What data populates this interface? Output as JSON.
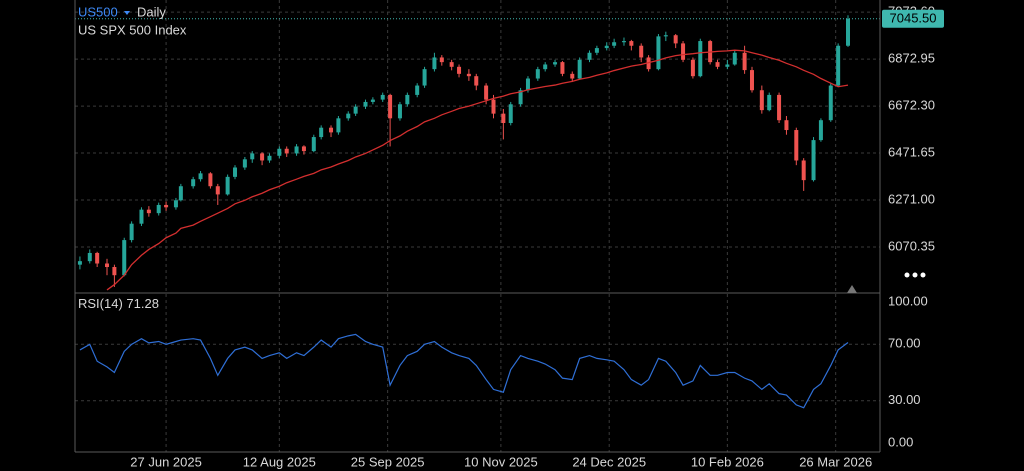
{
  "chart_data": {
    "type": "candlestick",
    "symbol": "US500",
    "interval": "Daily",
    "title": "US SPX 500 Index",
    "x": [
      "2025-05-23",
      "2025-05-27",
      "2025-05-30",
      "2025-06-03",
      "2025-06-06",
      "2025-06-10",
      "2025-06-13",
      "2025-06-17",
      "2025-06-20",
      "2025-06-24",
      "2025-06-27",
      "2025-07-01",
      "2025-07-03",
      "2025-07-08",
      "2025-07-11",
      "2025-07-15",
      "2025-07-18",
      "2025-07-22",
      "2025-07-25",
      "2025-07-29",
      "2025-08-01",
      "2025-08-05",
      "2025-08-08",
      "2025-08-12",
      "2025-08-15",
      "2025-08-19",
      "2025-08-22",
      "2025-08-26",
      "2025-08-29",
      "2025-09-02",
      "2025-09-05",
      "2025-09-09",
      "2025-09-12",
      "2025-09-16",
      "2025-09-19",
      "2025-09-23",
      "2025-09-26",
      "2025-09-30",
      "2025-10-03",
      "2025-10-07",
      "2025-10-10",
      "2025-10-14",
      "2025-10-17",
      "2025-10-21",
      "2025-10-24",
      "2025-10-28",
      "2025-10-31",
      "2025-11-04",
      "2025-11-07",
      "2025-11-11",
      "2025-11-14",
      "2025-11-18",
      "2025-11-21",
      "2025-11-25",
      "2025-11-28",
      "2025-12-02",
      "2025-12-05",
      "2025-12-09",
      "2025-12-12",
      "2025-12-16",
      "2025-12-19",
      "2025-12-23",
      "2025-12-26",
      "2025-12-30",
      "2026-01-02",
      "2026-01-06",
      "2026-01-09",
      "2026-01-13",
      "2026-01-16",
      "2026-01-20",
      "2026-01-23",
      "2026-01-27",
      "2026-01-30",
      "2026-02-03",
      "2026-02-06",
      "2026-02-10",
      "2026-02-13",
      "2026-02-17",
      "2026-02-20",
      "2026-02-24",
      "2026-02-27",
      "2026-03-03",
      "2026-03-06",
      "2026-03-10",
      "2026-03-13",
      "2026-03-17",
      "2026-03-20",
      "2026-03-24",
      "2026-03-27",
      "2026-03-31"
    ],
    "values": [
      [
        5995,
        6030,
        5975,
        6010
      ],
      [
        6010,
        6060,
        6000,
        6045
      ],
      [
        6045,
        6050,
        5985,
        6000
      ],
      [
        6000,
        6020,
        5950,
        5985
      ],
      [
        5985,
        5995,
        5900,
        5950
      ],
      [
        5950,
        6110,
        5945,
        6100
      ],
      [
        6100,
        6180,
        6090,
        6170
      ],
      [
        6170,
        6240,
        6160,
        6230
      ],
      [
        6230,
        6245,
        6200,
        6215
      ],
      [
        6215,
        6260,
        6205,
        6250
      ],
      [
        6250,
        6265,
        6225,
        6240
      ],
      [
        6240,
        6280,
        6230,
        6270
      ],
      [
        6270,
        6340,
        6265,
        6330
      ],
      [
        6330,
        6370,
        6320,
        6360
      ],
      [
        6360,
        6395,
        6350,
        6385
      ],
      [
        6385,
        6390,
        6320,
        6330
      ],
      [
        6330,
        6340,
        6250,
        6295
      ],
      [
        6295,
        6380,
        6290,
        6370
      ],
      [
        6370,
        6420,
        6360,
        6410
      ],
      [
        6410,
        6455,
        6400,
        6445
      ],
      [
        6445,
        6480,
        6430,
        6470
      ],
      [
        6470,
        6475,
        6420,
        6440
      ],
      [
        6440,
        6470,
        6430,
        6460
      ],
      [
        6460,
        6500,
        6450,
        6490
      ],
      [
        6490,
        6500,
        6455,
        6470
      ],
      [
        6470,
        6510,
        6460,
        6500
      ],
      [
        6500,
        6505,
        6465,
        6480
      ],
      [
        6480,
        6550,
        6475,
        6540
      ],
      [
        6540,
        6590,
        6530,
        6580
      ],
      [
        6580,
        6590,
        6540,
        6560
      ],
      [
        6560,
        6630,
        6550,
        6620
      ],
      [
        6620,
        6650,
        6610,
        6640
      ],
      [
        6640,
        6680,
        6630,
        6670
      ],
      [
        6670,
        6700,
        6660,
        6690
      ],
      [
        6690,
        6710,
        6680,
        6700
      ],
      [
        6700,
        6730,
        6690,
        6720
      ],
      [
        6720,
        6725,
        6500,
        6620
      ],
      [
        6620,
        6690,
        6610,
        6680
      ],
      [
        6680,
        6730,
        6670,
        6720
      ],
      [
        6720,
        6770,
        6710,
        6760
      ],
      [
        6760,
        6840,
        6750,
        6830
      ],
      [
        6830,
        6900,
        6820,
        6880
      ],
      [
        6880,
        6890,
        6845,
        6860
      ],
      [
        6860,
        6870,
        6825,
        6840
      ],
      [
        6840,
        6850,
        6795,
        6810
      ],
      [
        6810,
        6830,
        6780,
        6800
      ],
      [
        6800,
        6810,
        6740,
        6760
      ],
      [
        6760,
        6770,
        6680,
        6700
      ],
      [
        6700,
        6720,
        6620,
        6640
      ],
      [
        6640,
        6660,
        6530,
        6600
      ],
      [
        6600,
        6690,
        6590,
        6680
      ],
      [
        6680,
        6750,
        6670,
        6740
      ],
      [
        6740,
        6800,
        6730,
        6790
      ],
      [
        6790,
        6840,
        6780,
        6830
      ],
      [
        6830,
        6860,
        6820,
        6850
      ],
      [
        6850,
        6870,
        6840,
        6860
      ],
      [
        6860,
        6865,
        6800,
        6810
      ],
      [
        6810,
        6820,
        6775,
        6790
      ],
      [
        6790,
        6880,
        6785,
        6870
      ],
      [
        6870,
        6910,
        6860,
        6900
      ],
      [
        6900,
        6930,
        6890,
        6920
      ],
      [
        6920,
        6945,
        6910,
        6930
      ],
      [
        6930,
        6960,
        6920,
        6945
      ],
      [
        6945,
        6965,
        6930,
        6950
      ],
      [
        6950,
        6955,
        6910,
        6930
      ],
      [
        6930,
        6940,
        6860,
        6880
      ],
      [
        6880,
        6890,
        6820,
        6830
      ],
      [
        6830,
        6980,
        6825,
        6970
      ],
      [
        6970,
        6990,
        6950,
        6975
      ],
      [
        6975,
        6980,
        6920,
        6940
      ],
      [
        6940,
        6950,
        6860,
        6870
      ],
      [
        6870,
        6880,
        6790,
        6800
      ],
      [
        6800,
        6960,
        6795,
        6950
      ],
      [
        6950,
        6955,
        6850,
        6860
      ],
      [
        6860,
        6870,
        6830,
        6840
      ],
      [
        6840,
        6870,
        6830,
        6850
      ],
      [
        6850,
        6910,
        6845,
        6900
      ],
      [
        6900,
        6930,
        6810,
        6826
      ],
      [
        6826,
        6840,
        6730,
        6740
      ],
      [
        6740,
        6760,
        6640,
        6655
      ],
      [
        6655,
        6730,
        6650,
        6720
      ],
      [
        6720,
        6730,
        6600,
        6612
      ],
      [
        6612,
        6630,
        6550,
        6570
      ],
      [
        6570,
        6580,
        6420,
        6440
      ],
      [
        6440,
        6450,
        6310,
        6356
      ],
      [
        6356,
        6540,
        6350,
        6527
      ],
      [
        6527,
        6620,
        6520,
        6612
      ],
      [
        6612,
        6770,
        6605,
        6760
      ],
      [
        6760,
        6940,
        6755,
        6930
      ],
      [
        6930,
        7060,
        6925,
        7045.5
      ]
    ],
    "up_color": "#26a69a",
    "down_color": "#ef5350",
    "ma": {
      "color": "#d32f2f",
      "values": [
        null,
        null,
        null,
        5887,
        5910,
        5950,
        5995,
        6035,
        6060,
        6085,
        6110,
        6130,
        6150,
        6164,
        6180,
        6200,
        6215,
        6235,
        6255,
        6270,
        6285,
        6300,
        6315,
        6330,
        6345,
        6360,
        6372,
        6385,
        6400,
        6412,
        6425,
        6440,
        6455,
        6470,
        6485,
        6505,
        6525,
        6545,
        6565,
        6585,
        6605,
        6620,
        6635,
        6650,
        6662,
        6672,
        6682,
        6695,
        6705,
        6715,
        6725,
        6733,
        6742,
        6750,
        6756,
        6762,
        6770,
        6778,
        6787,
        6795,
        6804,
        6814,
        6824,
        6835,
        6843,
        6850,
        6858,
        6868,
        6878,
        6888,
        6892,
        6896,
        6900,
        6903,
        6906,
        6908,
        6911,
        6908,
        6900,
        6890,
        6880,
        6868,
        6855,
        6840,
        6825,
        6808,
        6790,
        6770,
        6755,
        6762
      ]
    },
    "xlim": [
      "2025-05-21",
      "2026-04-13"
    ],
    "xticks": [
      {
        "value": "2025-06-27",
        "label": "27 Jun 2025"
      },
      {
        "value": "2025-08-12",
        "label": "12 Aug 2025"
      },
      {
        "value": "2025-09-25",
        "label": "25 Sep 2025"
      },
      {
        "value": "2025-11-10",
        "label": "10 Nov 2025"
      },
      {
        "value": "2025-12-24",
        "label": "24 Dec 2025"
      },
      {
        "value": "2026-02-10",
        "label": "10 Feb 2026"
      },
      {
        "value": "2026-03-26",
        "label": "26 Mar 2026"
      }
    ],
    "ylim": [
      5874,
      7104
    ],
    "yticks": [
      6070.35,
      {
        "value": 6271,
        "label": "6271.00"
      },
      6471.65,
      {
        "value": 6672.3,
        "label": "6672.30"
      },
      6872.95,
      {
        "value": 7073.6,
        "label": "7073.60"
      }
    ],
    "grid": true,
    "last_price": {
      "value": 7045.5,
      "label": "7045.50"
    },
    "last_price_color": "#3fb8af",
    "indicator": {
      "type": "line",
      "name": "RSI(14)",
      "color": "#2f6fd6",
      "values": [
        66,
        70,
        58,
        54,
        50,
        65,
        70,
        74,
        71,
        72,
        70,
        72,
        73,
        74,
        73,
        60,
        48,
        60,
        66,
        68,
        66,
        60,
        62,
        64,
        60,
        64,
        62,
        68,
        73,
        68,
        74,
        76,
        77,
        72,
        70,
        68,
        41,
        55,
        62,
        65,
        70,
        72,
        68,
        64,
        62,
        60,
        55,
        45,
        38,
        36,
        52,
        62,
        60,
        58,
        56,
        52,
        46,
        45,
        60,
        62,
        60,
        59,
        58,
        52,
        45,
        41,
        45,
        60,
        58,
        50,
        41,
        44,
        55,
        48,
        48,
        50,
        50,
        46,
        44,
        38,
        42,
        35,
        34,
        27,
        25,
        38,
        42,
        55,
        66,
        71.28
      ],
      "ylim": [
        -6.4,
        106.4
      ],
      "yticks": [
        {
          "value": 100,
          "label": "100.00"
        },
        {
          "value": 70,
          "label": "70.00"
        },
        {
          "value": 30,
          "label": "30.00"
        },
        {
          "value": 0,
          "label": "0.00"
        }
      ],
      "levels": [
        70,
        30
      ]
    }
  }
}
